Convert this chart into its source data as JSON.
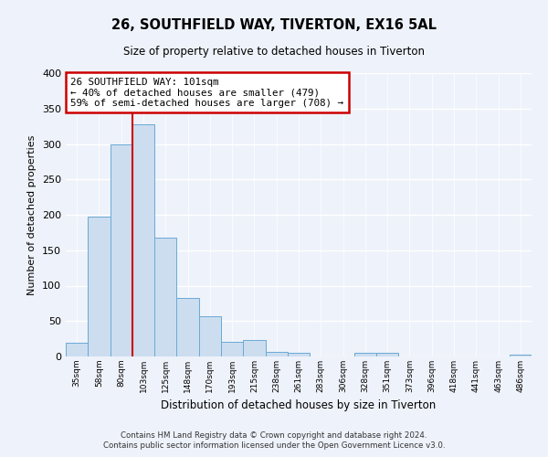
{
  "title": "26, SOUTHFIELD WAY, TIVERTON, EX16 5AL",
  "subtitle": "Size of property relative to detached houses in Tiverton",
  "xlabel": "Distribution of detached houses by size in Tiverton",
  "ylabel": "Number of detached properties",
  "bins": [
    "35sqm",
    "58sqm",
    "80sqm",
    "103sqm",
    "125sqm",
    "148sqm",
    "170sqm",
    "193sqm",
    "215sqm",
    "238sqm",
    "261sqm",
    "283sqm",
    "306sqm",
    "328sqm",
    "351sqm",
    "373sqm",
    "396sqm",
    "418sqm",
    "441sqm",
    "463sqm",
    "486sqm"
  ],
  "counts": [
    20,
    197,
    299,
    328,
    168,
    82,
    57,
    21,
    23,
    7,
    5,
    0,
    0,
    5,
    5,
    0,
    0,
    0,
    0,
    0,
    3
  ],
  "bar_color": "#ccddf0",
  "bar_edge_color": "#6aaad4",
  "vline_color": "#cc0000",
  "annotation_line1": "26 SOUTHFIELD WAY: 101sqm",
  "annotation_line2": "← 40% of detached houses are smaller (479)",
  "annotation_line3": "59% of semi-detached houses are larger (708) →",
  "annotation_box_color": "white",
  "annotation_box_edge": "#cc0000",
  "ylim": [
    0,
    400
  ],
  "yticks": [
    0,
    50,
    100,
    150,
    200,
    250,
    300,
    350,
    400
  ],
  "footer1": "Contains HM Land Registry data © Crown copyright and database right 2024.",
  "footer2": "Contains public sector information licensed under the Open Government Licence v3.0.",
  "bg_color": "#eef2fa",
  "grid_color": "#d0d8e8"
}
